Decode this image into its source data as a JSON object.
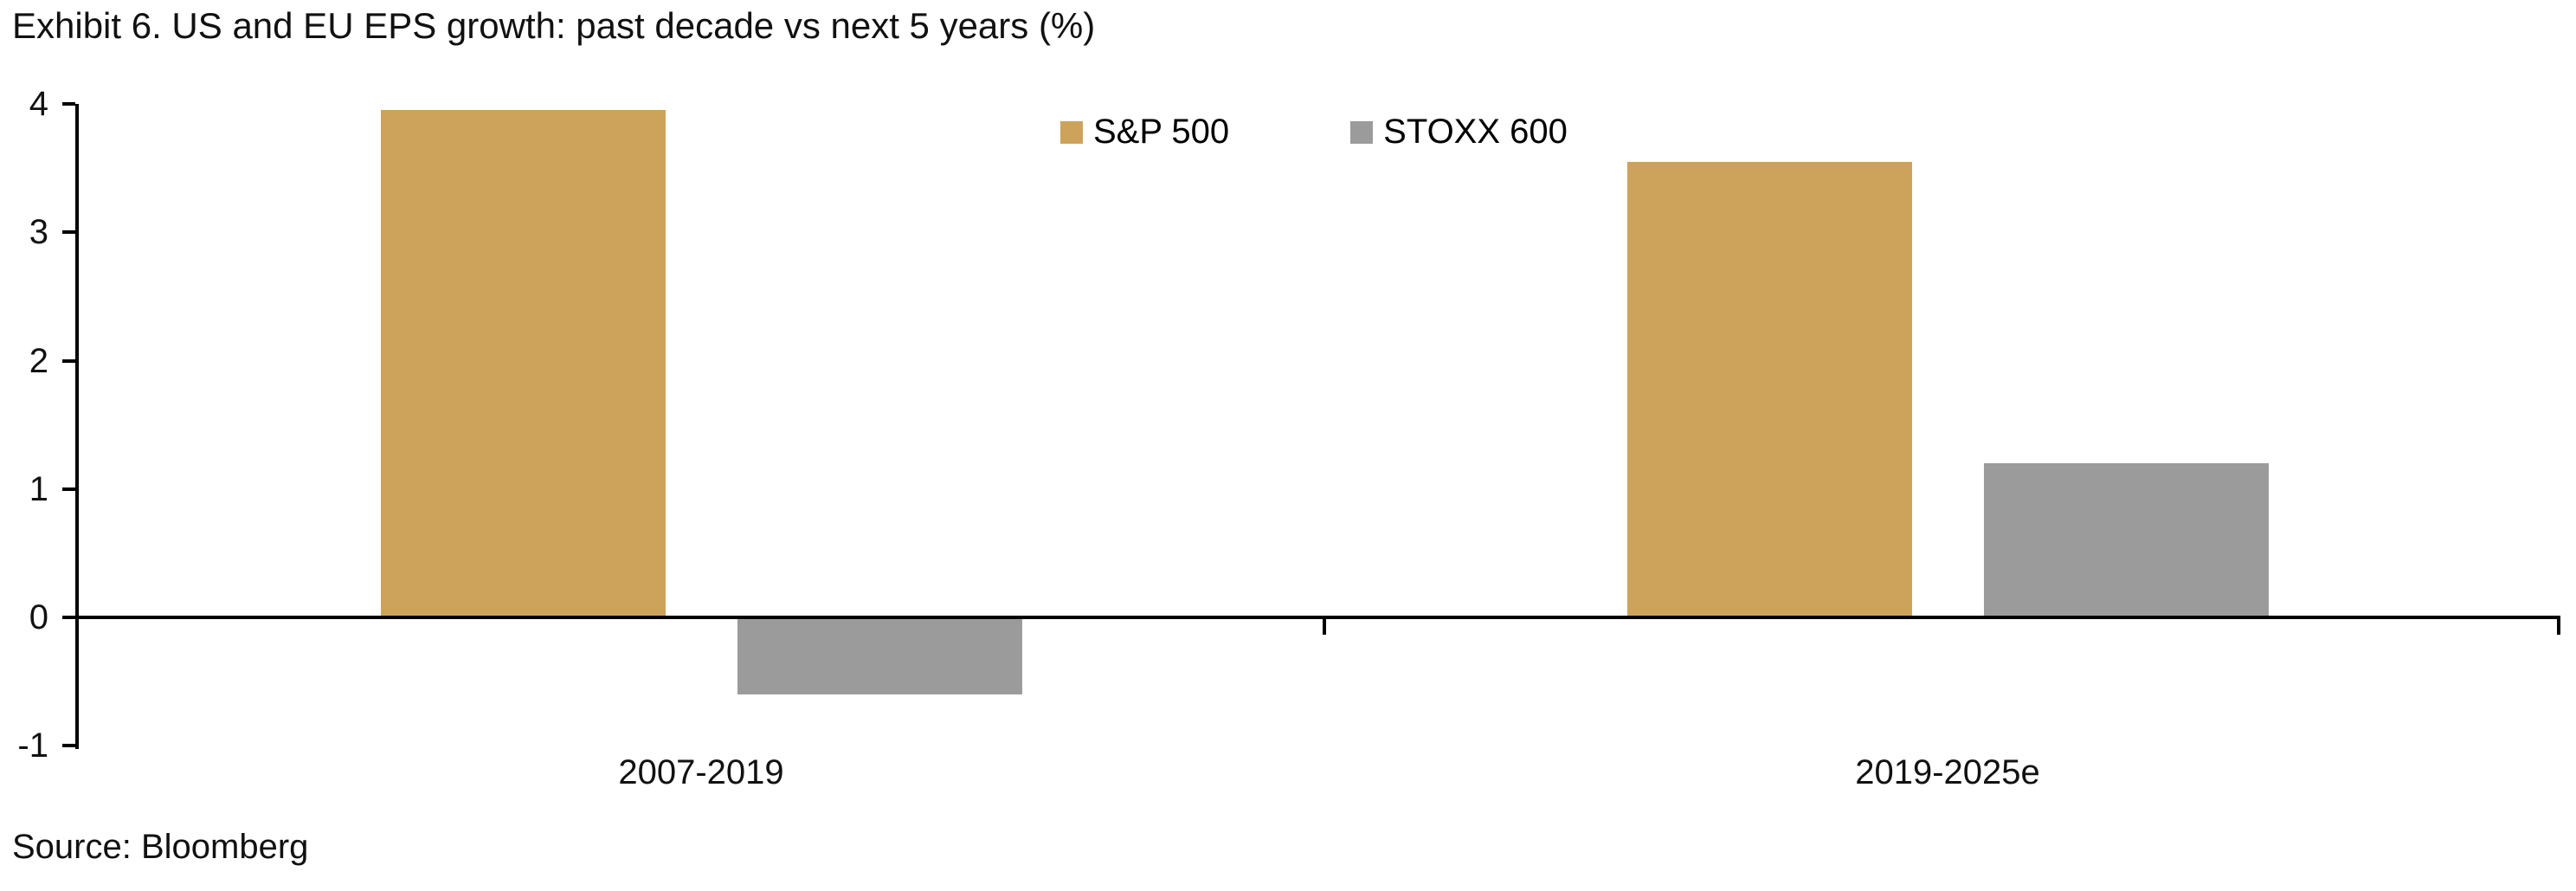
{
  "chart_data": {
    "type": "bar",
    "title": "Exhibit 6. US and EU EPS growth: past decade vs next 5 years (%)",
    "categories": [
      "2007-2019",
      "2019-2025e"
    ],
    "series": [
      {
        "name": "S&P 500",
        "color": "#CDA35B",
        "values": [
          3.95,
          3.55
        ]
      },
      {
        "name": "STOXX 600",
        "color": "#9B9B9B",
        "values": [
          -0.6,
          1.2
        ]
      }
    ],
    "xlabel": "",
    "ylabel": "",
    "ylim": [
      -1,
      4
    ],
    "yticks": [
      4,
      3,
      2,
      1,
      0,
      -1
    ],
    "grid": false,
    "legend_position": "top-center",
    "axis_color": "#000000"
  },
  "source_note": "Source: Bloomberg"
}
